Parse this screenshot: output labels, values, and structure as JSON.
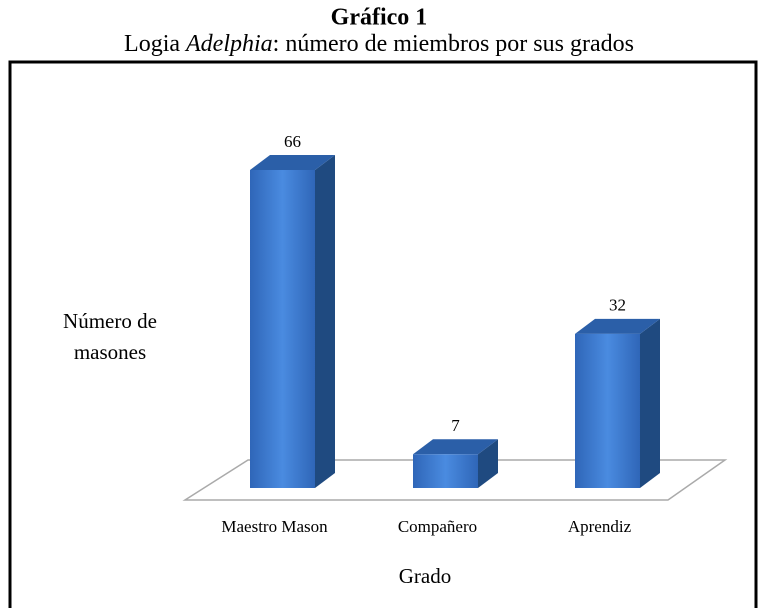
{
  "chart_data": {
    "type": "bar3d",
    "title": "Gráfico 1",
    "subtitle_parts": [
      "Logia ",
      "Adelphia",
      ": número de miembros por sus grados"
    ],
    "y_label": [
      "Número de",
      "masones"
    ],
    "x_label": "Grado",
    "categories": [
      "Maestro Mason",
      "Compañero",
      "Aprendiz"
    ],
    "values": [
      66,
      7,
      32
    ],
    "color": "#3a78d0"
  }
}
